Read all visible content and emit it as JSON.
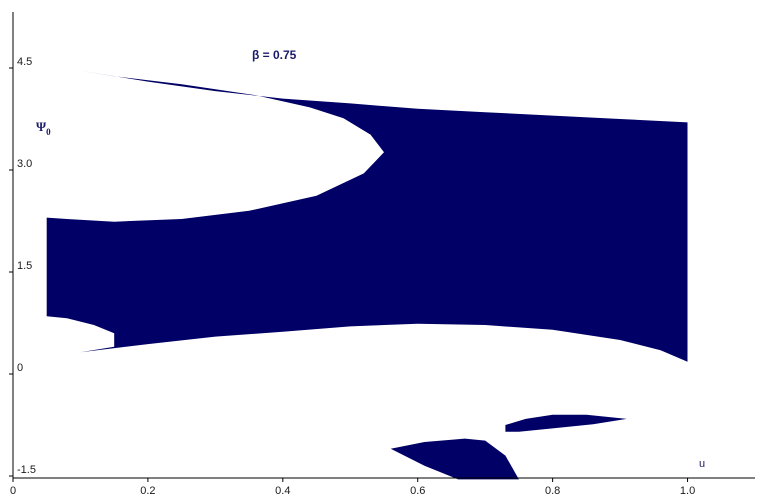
{
  "chart_data": {
    "type": "area",
    "title": "β = 0.75",
    "xlabel": "u",
    "ylabel": "Ψ0",
    "ylabel_main": "Ψ",
    "ylabel_sub": "0",
    "xlim": [
      0,
      1.1
    ],
    "ylim": [
      -1.55,
      5.1
    ],
    "grid": false,
    "legend": "none",
    "fill_color": "#000066",
    "x_ticks": [
      {
        "value": 0,
        "label": "0"
      },
      {
        "value": 0.2,
        "label": "0.2"
      },
      {
        "value": 0.4,
        "label": "0.4"
      },
      {
        "value": 0.6,
        "label": "0.6"
      },
      {
        "value": 0.8,
        "label": "0.8"
      },
      {
        "value": 1.0,
        "label": "1.0"
      }
    ],
    "y_ticks": [
      {
        "value": -1.5,
        "label": "-1.5"
      },
      {
        "value": 0,
        "label": "0"
      },
      {
        "value": 1.5,
        "label": "1.5"
      },
      {
        "value": 3.0,
        "label": "3.0"
      },
      {
        "value": 4.5,
        "label": "4.5"
      }
    ],
    "regions": [
      {
        "points": [
          [
            0.1,
            4.46
          ],
          [
            0.2,
            4.3
          ],
          [
            0.3,
            4.16
          ],
          [
            0.4,
            4.05
          ],
          [
            0.5,
            3.98
          ],
          [
            0.6,
            3.9
          ],
          [
            0.7,
            3.85
          ],
          [
            0.8,
            3.8
          ],
          [
            0.9,
            3.75
          ],
          [
            1.0,
            3.7
          ],
          [
            1.0,
            0.18
          ],
          [
            0.96,
            0.35
          ],
          [
            0.9,
            0.5
          ],
          [
            0.8,
            0.65
          ],
          [
            0.7,
            0.72
          ],
          [
            0.6,
            0.74
          ],
          [
            0.5,
            0.7
          ],
          [
            0.4,
            0.62
          ],
          [
            0.3,
            0.55
          ],
          [
            0.2,
            0.44
          ],
          [
            0.1,
            0.32
          ],
          [
            0.15,
            0.4
          ],
          [
            0.15,
            0.6
          ],
          [
            0.12,
            0.72
          ],
          [
            0.08,
            0.82
          ],
          [
            0.05,
            0.85
          ],
          [
            0.05,
            2.3
          ],
          [
            0.08,
            2.28
          ],
          [
            0.15,
            2.24
          ],
          [
            0.25,
            2.28
          ],
          [
            0.35,
            2.4
          ],
          [
            0.45,
            2.62
          ],
          [
            0.52,
            2.95
          ],
          [
            0.55,
            3.26
          ],
          [
            0.53,
            3.52
          ],
          [
            0.49,
            3.76
          ],
          [
            0.44,
            3.92
          ],
          [
            0.36,
            4.1
          ],
          [
            0.25,
            4.26
          ],
          [
            0.15,
            4.38
          ]
        ]
      },
      {
        "points": [
          [
            0.73,
            -0.75
          ],
          [
            0.76,
            -0.66
          ],
          [
            0.8,
            -0.6
          ],
          [
            0.85,
            -0.6
          ],
          [
            0.91,
            -0.66
          ],
          [
            0.86,
            -0.74
          ],
          [
            0.8,
            -0.8
          ],
          [
            0.75,
            -0.85
          ],
          [
            0.73,
            -0.85
          ]
        ]
      },
      {
        "points": [
          [
            0.56,
            -1.1
          ],
          [
            0.61,
            -1.0
          ],
          [
            0.67,
            -0.95
          ],
          [
            0.7,
            -0.98
          ],
          [
            0.73,
            -1.2
          ],
          [
            0.75,
            -1.55
          ],
          [
            0.66,
            -1.55
          ],
          [
            0.61,
            -1.35
          ]
        ]
      }
    ]
  }
}
